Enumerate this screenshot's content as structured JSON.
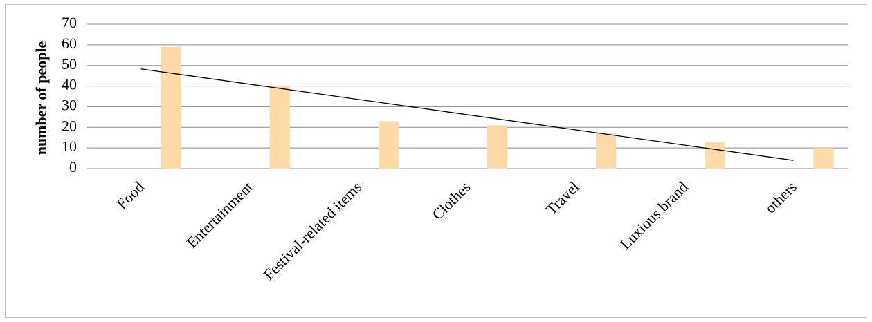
{
  "chart_data": {
    "type": "bar",
    "y_label": "number of people",
    "categories": [
      "Food",
      "Entertainment",
      "Festival-related items",
      "Clothes",
      "Travel",
      "Luxious brand",
      "others"
    ],
    "values": [
      59,
      40,
      23,
      21,
      17,
      13,
      10
    ],
    "color": "#ffdaa6",
    "ylim": [
      0,
      70
    ],
    "yticks": [
      0,
      10,
      20,
      30,
      40,
      50,
      60,
      70
    ],
    "grid": true,
    "trendline": {
      "type": "linear",
      "color": "#000000"
    }
  }
}
